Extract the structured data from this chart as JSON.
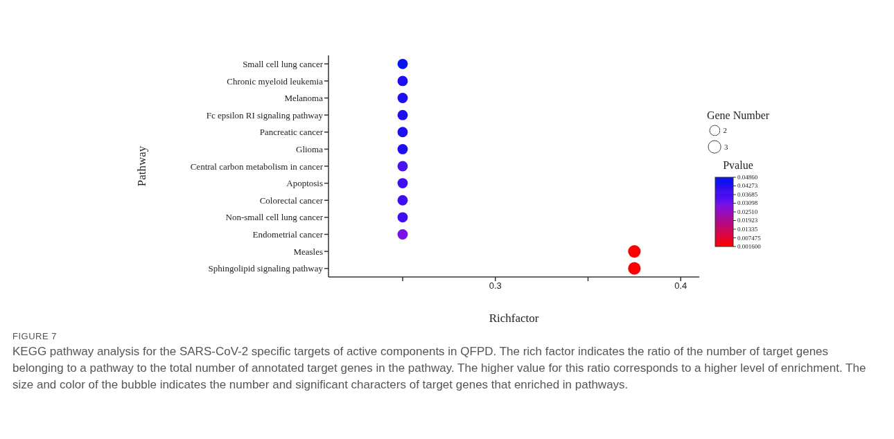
{
  "chart_data": {
    "type": "bubble",
    "orientation": "horizontal",
    "xlabel": "Richfactor",
    "ylabel": "Pathway",
    "legend_title": "Gene Number",
    "clabel": "Pvalue",
    "grid": false,
    "categories": [
      "Small cell lung cancer",
      "Chronic myeloid leukemia",
      "Melanoma",
      "Fc epsilon RI signaling pathway",
      "Pancreatic cancer",
      "Glioma",
      "Central carbon metabolism in cancer",
      "Apoptosis",
      "Colorectal cancer",
      "Non-small cell lung cancer",
      "Endometrial cancer",
      "Measles",
      "Sphingolipid signaling pathway"
    ],
    "values": [
      0.25,
      0.25,
      0.25,
      0.25,
      0.25,
      0.25,
      0.25,
      0.25,
      0.25,
      0.25,
      0.25,
      0.375,
      0.375
    ],
    "sizes": [
      2,
      2,
      2,
      2,
      2,
      2,
      2,
      2,
      2,
      2,
      2,
      3,
      3
    ],
    "size_legend": [
      2,
      3
    ],
    "cvalues": [
      0.045,
      0.044,
      0.044,
      0.044,
      0.044,
      0.043,
      0.038,
      0.037,
      0.037,
      0.036,
      0.03,
      0.0016,
      0.0016
    ],
    "colors": [
      "#0a14f0",
      "#1e0ff0",
      "#1e0ff0",
      "#1e0ff0",
      "#1e0ff0",
      "#200cf0",
      "#4a12ee",
      "#400ef0",
      "#400ef0",
      "#400ef0",
      "#7a10e8",
      "#ff0000",
      "#ff0000"
    ],
    "clim": [
      0.0016,
      0.0486
    ],
    "cticks": [
      {
        "value": 0.0486,
        "label": "0.04860"
      },
      {
        "value": 0.04273,
        "label": "0.04273"
      },
      {
        "value": 0.03685,
        "label": "0.03685"
      },
      {
        "value": 0.03098,
        "label": "0.03098"
      },
      {
        "value": 0.0251,
        "label": "0.02510"
      },
      {
        "value": 0.01923,
        "label": "0.01923"
      },
      {
        "value": 0.01335,
        "label": "0.01335"
      },
      0.007475,
      {
        "value": 0.0016,
        "label": "0.001600"
      }
    ],
    "xlim": [
      0.21,
      0.41
    ],
    "xticks": [
      {
        "value": 0.25,
        "label": null
      },
      0.3,
      {
        "value": 0.35,
        "label": null
      },
      0.4
    ],
    "annotations": [
      "FIGURE 7",
      "KEGG pathway analysis for the SARS-CoV-2 specific targets of active components in QFPD. The rich factor indicates the ratio of the number of target genes belonging to a pathway to the total number of annotated target genes in the pathway. The higher value for this ratio corresponds to a higher level of enrichment. The size and color of the bubble indicates the number and significant characters of target genes that enriched in pathways."
    ]
  }
}
